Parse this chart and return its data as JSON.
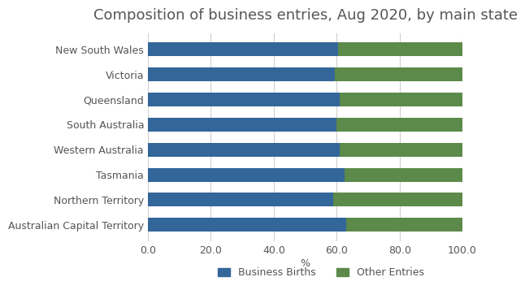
{
  "title": "Composition of business entries, Aug 2020, by main state",
  "categories": [
    "New South Wales",
    "Victoria",
    "Queensland",
    "South Australia",
    "Western Australia",
    "Tasmania",
    "Northern Territory",
    "Australian Capital Territory"
  ],
  "business_births": [
    60.5,
    59.5,
    61.0,
    60.0,
    61.0,
    62.5,
    59.0,
    63.0
  ],
  "other_entries": [
    39.5,
    40.5,
    39.0,
    40.0,
    39.0,
    37.5,
    41.0,
    37.0
  ],
  "color_births": "#336699",
  "color_other": "#5c8a4a",
  "xlim": [
    0,
    100
  ],
  "xticks": [
    0.0,
    20.0,
    40.0,
    60.0,
    80.0,
    100.0
  ],
  "xlabel": "%",
  "legend_labels": [
    "Business Births",
    "Other Entries"
  ],
  "background_color": "#ffffff",
  "grid_color": "#d0d0d0",
  "title_fontsize": 13,
  "tick_fontsize": 9,
  "label_fontsize": 9,
  "bar_height": 0.55
}
